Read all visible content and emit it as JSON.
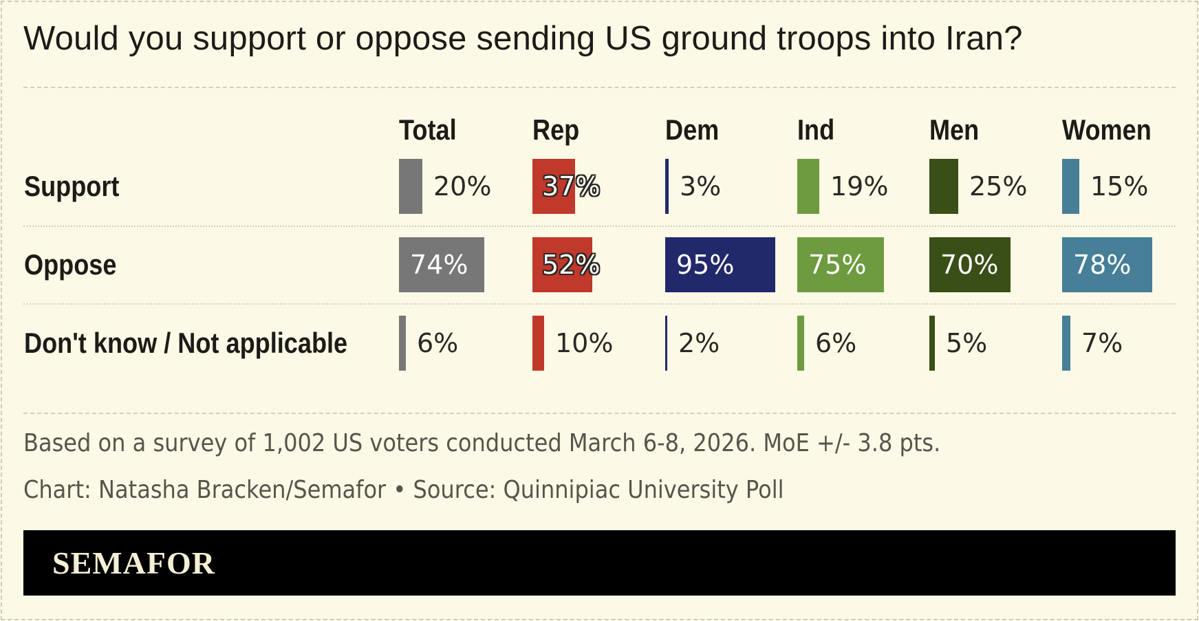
{
  "title": "Would you support or oppose sending US ground troops into Iran?",
  "chart_data": {
    "type": "bar",
    "columns": [
      {
        "name": "Total",
        "color": "#777777"
      },
      {
        "name": "Rep",
        "color": "#c0392b"
      },
      {
        "name": "Dem",
        "color": "#22296a"
      },
      {
        "name": "Ind",
        "color": "#6e9b3f"
      },
      {
        "name": "Men",
        "color": "#3a4f17"
      },
      {
        "name": "Women",
        "color": "#467f97"
      }
    ],
    "rows": [
      {
        "label": "Support",
        "values": [
          20,
          37,
          3,
          19,
          25,
          15
        ],
        "labels": [
          "20%",
          "37%",
          "3%",
          "19%",
          "25%",
          "15%"
        ]
      },
      {
        "label": "Oppose",
        "values": [
          74,
          52,
          95,
          75,
          70,
          78
        ],
        "labels": [
          "74%",
          "52%",
          "95%",
          "75%",
          "70%",
          "78%"
        ]
      },
      {
        "label": "Don't know / Not applicable",
        "values": [
          6,
          10,
          2,
          6,
          5,
          7
        ],
        "labels": [
          "6%",
          "10%",
          "2%",
          "6%",
          "5%",
          "7%"
        ]
      }
    ],
    "unit": "%"
  },
  "notes": {
    "survey": "Based on a survey of 1,002 US voters conducted March 6-8, 2026. MoE +/- 3.8 pts.",
    "credit": "Chart: Natasha Bracken/Semafor • Source: Quinnipiac University Poll"
  },
  "brand": {
    "logo_text": "SEMAFOR"
  }
}
